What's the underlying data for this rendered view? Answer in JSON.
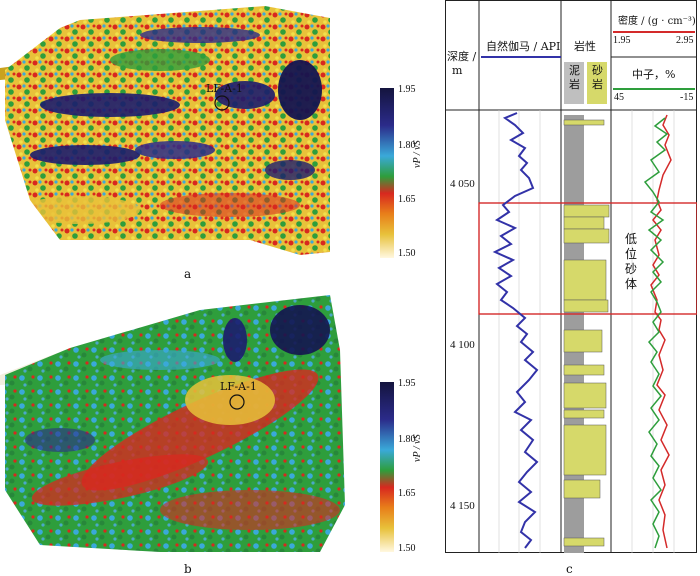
{
  "panel_a": {
    "caption": "a",
    "well_label": "LF-A-1",
    "colorbar": {
      "ticks": [
        "1.95",
        "1.80",
        "1.65",
        "1.50"
      ],
      "label": "vP / vS"
    }
  },
  "panel_b": {
    "caption": "b",
    "well_label": "LF-A-1",
    "colorbar": {
      "ticks": [
        "1.95",
        "1.80",
        "1.65",
        "1.50"
      ],
      "label": "vP / vS"
    }
  },
  "panel_c": {
    "caption": "c",
    "headers": {
      "depth": "深度 /",
      "depth_unit": "m",
      "gamma": "自然伽马 / API",
      "lithology": "岩性",
      "mudstone": "泥岩",
      "sandstone": "砂岩",
      "density": "密度 / (g · cm⁻³)",
      "density_min": "1.95",
      "density_max": "2.95",
      "neutron": "中子，%",
      "neutron_left": "45",
      "neutron_right": "-15"
    },
    "depth_ticks": [
      "4 050",
      "4 100",
      "4 150"
    ],
    "annotation": "低位砂体",
    "colors": {
      "gamma": "#3232a8",
      "density": "#d42a2a",
      "neutron": "#2e9e3c",
      "box": "#d42a2a"
    }
  }
}
